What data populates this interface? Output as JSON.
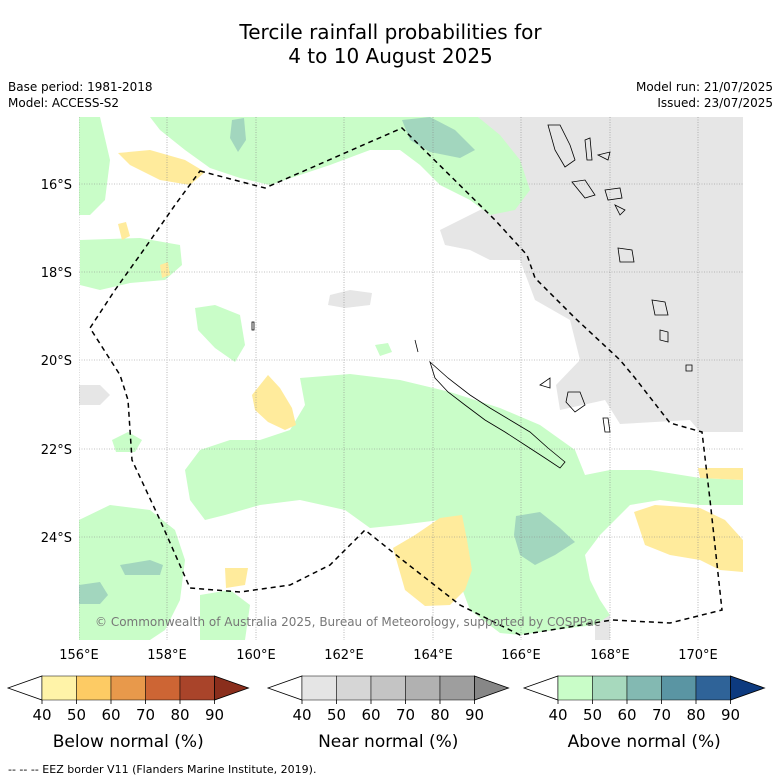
{
  "title_line1": "Tercile rainfall probabilities for",
  "title_line2": "4 to 10 August 2025",
  "base_period": "Base period: 1981-2018",
  "model": "Model: ACCESS-S2",
  "model_run": "Model run: 21/07/2025",
  "issued": "Issued: 23/07/2025",
  "copyright": "© Commonwealth of Australia 2025, Bureau of Meteorology, supported by COSPPac",
  "footer": "--  --  -- EEZ border V11 (Flanders Marine Institute, 2019).",
  "lon_ticks": [
    "156°E",
    "158°E",
    "160°E",
    "162°E",
    "164°E",
    "166°E",
    "168°E",
    "170°E"
  ],
  "lat_ticks": [
    "16°S",
    "18°S",
    "20°S",
    "22°S",
    "24°S"
  ],
  "colorbars": {
    "below": {
      "title": "Below normal (%)",
      "ticks": [
        "40",
        "50",
        "60",
        "70",
        "80",
        "90"
      ],
      "colors": [
        "#fff3a8",
        "#fdcb64",
        "#e8994b",
        "#cd6534",
        "#a9442a",
        "#8a2e1c"
      ]
    },
    "near": {
      "title": "Near normal (%)",
      "ticks": [
        "40",
        "50",
        "60",
        "70",
        "80",
        "90"
      ],
      "colors": [
        "#e5e5e5",
        "#d6d6d6",
        "#c4c4c4",
        "#b1b1b1",
        "#9e9e9e",
        "#878787"
      ]
    },
    "above": {
      "title": "Above normal (%)",
      "ticks": [
        "40",
        "50",
        "60",
        "70",
        "80",
        "90"
      ],
      "colors": [
        "#c9fdc8",
        "#a7d9bd",
        "#83b9b2",
        "#5a95a3",
        "#2f6398",
        "#0d3a7f"
      ]
    }
  },
  "colors": {
    "above_light": "#c9fdc8",
    "above_mid": "#a2d6be",
    "below_light": "#ffeb9c",
    "near_light": "#e6e6e6"
  }
}
